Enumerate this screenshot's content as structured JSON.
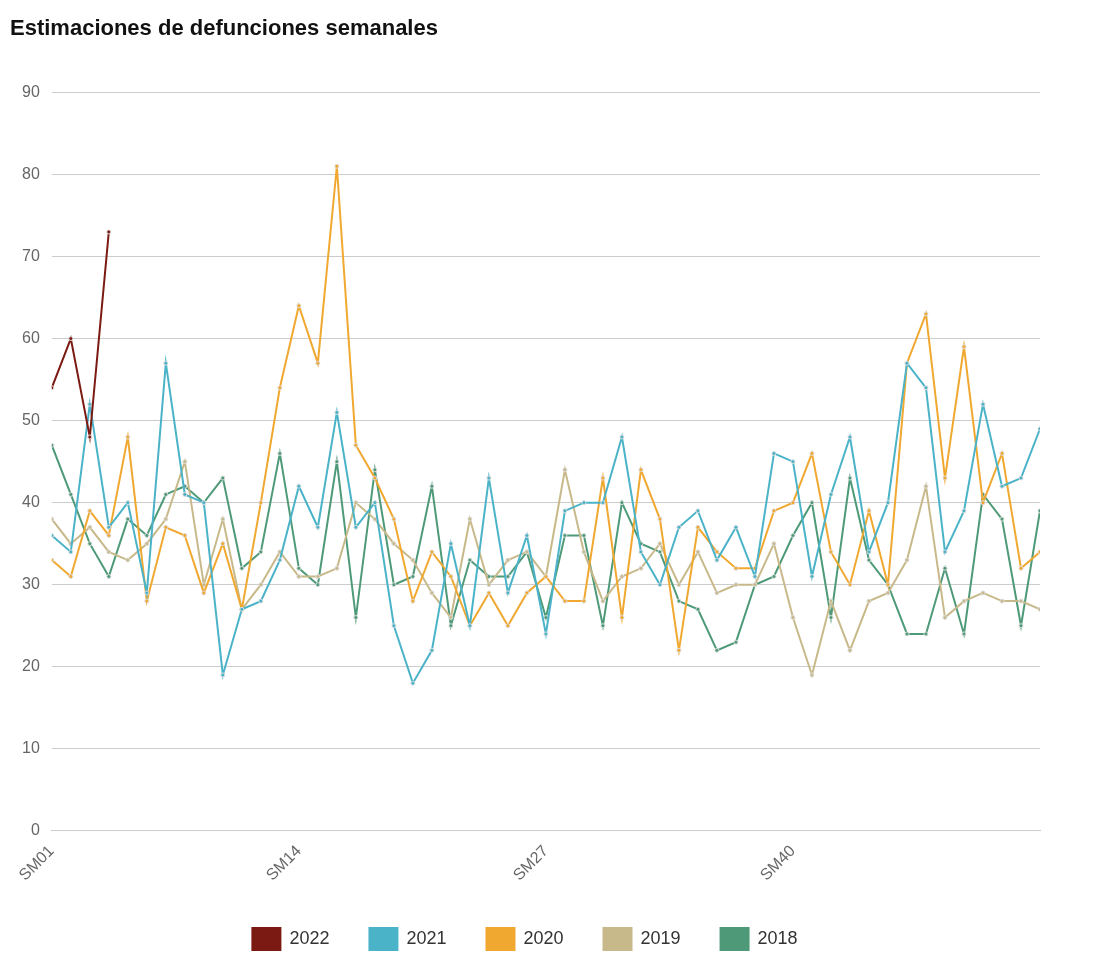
{
  "chart_data": {
    "type": "line",
    "title": "Estimaciones de defunciones semanales",
    "categories": [
      "SM01",
      null,
      null,
      null,
      null,
      null,
      null,
      null,
      null,
      null,
      null,
      null,
      null,
      "SM14",
      null,
      null,
      null,
      null,
      null,
      null,
      null,
      null,
      null,
      null,
      null,
      null,
      "SM27",
      null,
      null,
      null,
      null,
      null,
      null,
      null,
      null,
      null,
      null,
      null,
      null,
      "SM40",
      null,
      null,
      null,
      null,
      null,
      null,
      null,
      null,
      null,
      null,
      null,
      null,
      null
    ],
    "series": [
      {
        "name": "2022",
        "color": "#7b1a12",
        "values": [
          54,
          60,
          48,
          73,
          null,
          null,
          null,
          null,
          null,
          null,
          null,
          null,
          null,
          null,
          null,
          null,
          null,
          null,
          null,
          null,
          null,
          null,
          null,
          null,
          null,
          null,
          null,
          null,
          null,
          null,
          null,
          null,
          null,
          null,
          null,
          null,
          null,
          null,
          null,
          null,
          null,
          null,
          null,
          null,
          null,
          null,
          null,
          null,
          null,
          null,
          null,
          null,
          null
        ]
      },
      {
        "name": "2021",
        "color": "#4bb3c8",
        "values": [
          36,
          34,
          52,
          37,
          40,
          29,
          57,
          41,
          40,
          19,
          27,
          28,
          33,
          42,
          37,
          51,
          37,
          40,
          25,
          18,
          22,
          35,
          25,
          43,
          29,
          36,
          24,
          39,
          40,
          40,
          48,
          34,
          30,
          37,
          39,
          33,
          37,
          31,
          46,
          45,
          31,
          41,
          48,
          34,
          40,
          57,
          54,
          34,
          39,
          52,
          42,
          43,
          49
        ]
      },
      {
        "name": "2020",
        "color": "#f0a830",
        "values": [
          33,
          31,
          39,
          36,
          48,
          28,
          37,
          36,
          29,
          35,
          27,
          40,
          54,
          64,
          57,
          81,
          47,
          43,
          38,
          28,
          34,
          31,
          25,
          29,
          25,
          29,
          31,
          28,
          28,
          43,
          26,
          44,
          38,
          22,
          37,
          34,
          32,
          32,
          39,
          40,
          46,
          34,
          30,
          39,
          30,
          57,
          63,
          43,
          59,
          40,
          46,
          32,
          34
        ]
      },
      {
        "name": "2019",
        "color": "#c8b98a",
        "values": [
          38,
          35,
          37,
          34,
          33,
          35,
          38,
          45,
          30,
          38,
          27,
          30,
          34,
          31,
          31,
          32,
          40,
          38,
          35,
          33,
          29,
          26,
          38,
          30,
          33,
          34,
          31,
          44,
          34,
          28,
          31,
          32,
          35,
          30,
          34,
          29,
          30,
          30,
          35,
          26,
          19,
          28,
          22,
          28,
          29,
          33,
          42,
          26,
          28,
          29,
          28,
          28,
          27
        ]
      },
      {
        "name": "2018",
        "color": "#4e9a78",
        "values": [
          47,
          41,
          35,
          31,
          38,
          36,
          41,
          42,
          40,
          43,
          32,
          34,
          46,
          32,
          30,
          45,
          26,
          44,
          30,
          31,
          42,
          25,
          33,
          31,
          31,
          34,
          26,
          36,
          36,
          25,
          40,
          35,
          34,
          28,
          27,
          22,
          23,
          30,
          31,
          36,
          40,
          26,
          43,
          33,
          30,
          24,
          24,
          32,
          24,
          41,
          38,
          25,
          39
        ]
      }
    ],
    "ylim": [
      0,
      90
    ],
    "yticks": [
      0,
      10,
      20,
      30,
      40,
      50,
      60,
      70,
      80,
      90
    ],
    "grid": true,
    "legend": "bottom",
    "marker": "circle"
  }
}
